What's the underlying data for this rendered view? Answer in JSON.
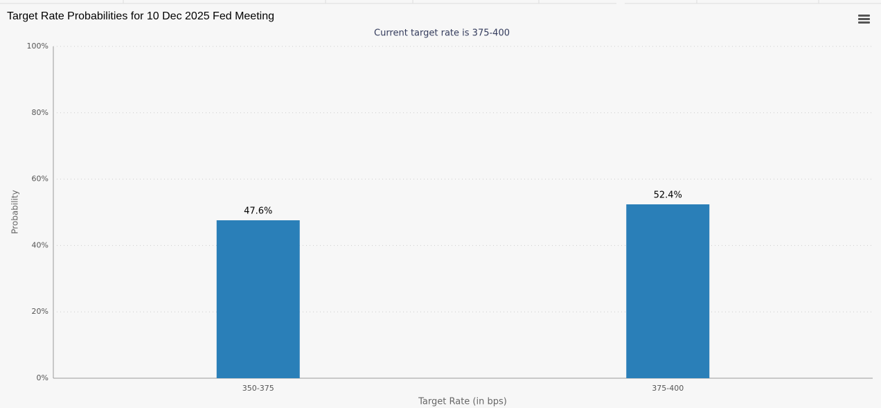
{
  "chart_data": {
    "type": "bar",
    "title": "Target Rate Probabilities for 10 Dec 2025 Fed Meeting",
    "subtitle": "Current target rate is 375-400",
    "x_label": "Target Rate (in bps)",
    "y_label": "Probability",
    "categories": [
      "350-375",
      "375-400"
    ],
    "values": [
      47.6,
      52.4
    ],
    "value_labels": [
      "47.6%",
      "52.4%"
    ],
    "color": "#2a7fb8",
    "ylim": [
      0,
      100
    ],
    "yticks": [
      {
        "value": 0,
        "label": "0%"
      },
      {
        "value": 20,
        "label": "20%"
      },
      {
        "value": 40,
        "label": "40%"
      },
      {
        "value": 60,
        "label": "60%"
      },
      {
        "value": 80,
        "label": "80%"
      },
      {
        "value": 100,
        "label": "100%"
      }
    ],
    "grid": true
  }
}
